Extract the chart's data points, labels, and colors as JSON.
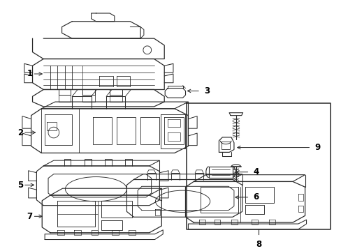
{
  "bg_color": "#ffffff",
  "line_color": "#2a2a2a",
  "label_color": "#000000",
  "fig_width": 4.89,
  "fig_height": 3.6,
  "dpi": 100
}
